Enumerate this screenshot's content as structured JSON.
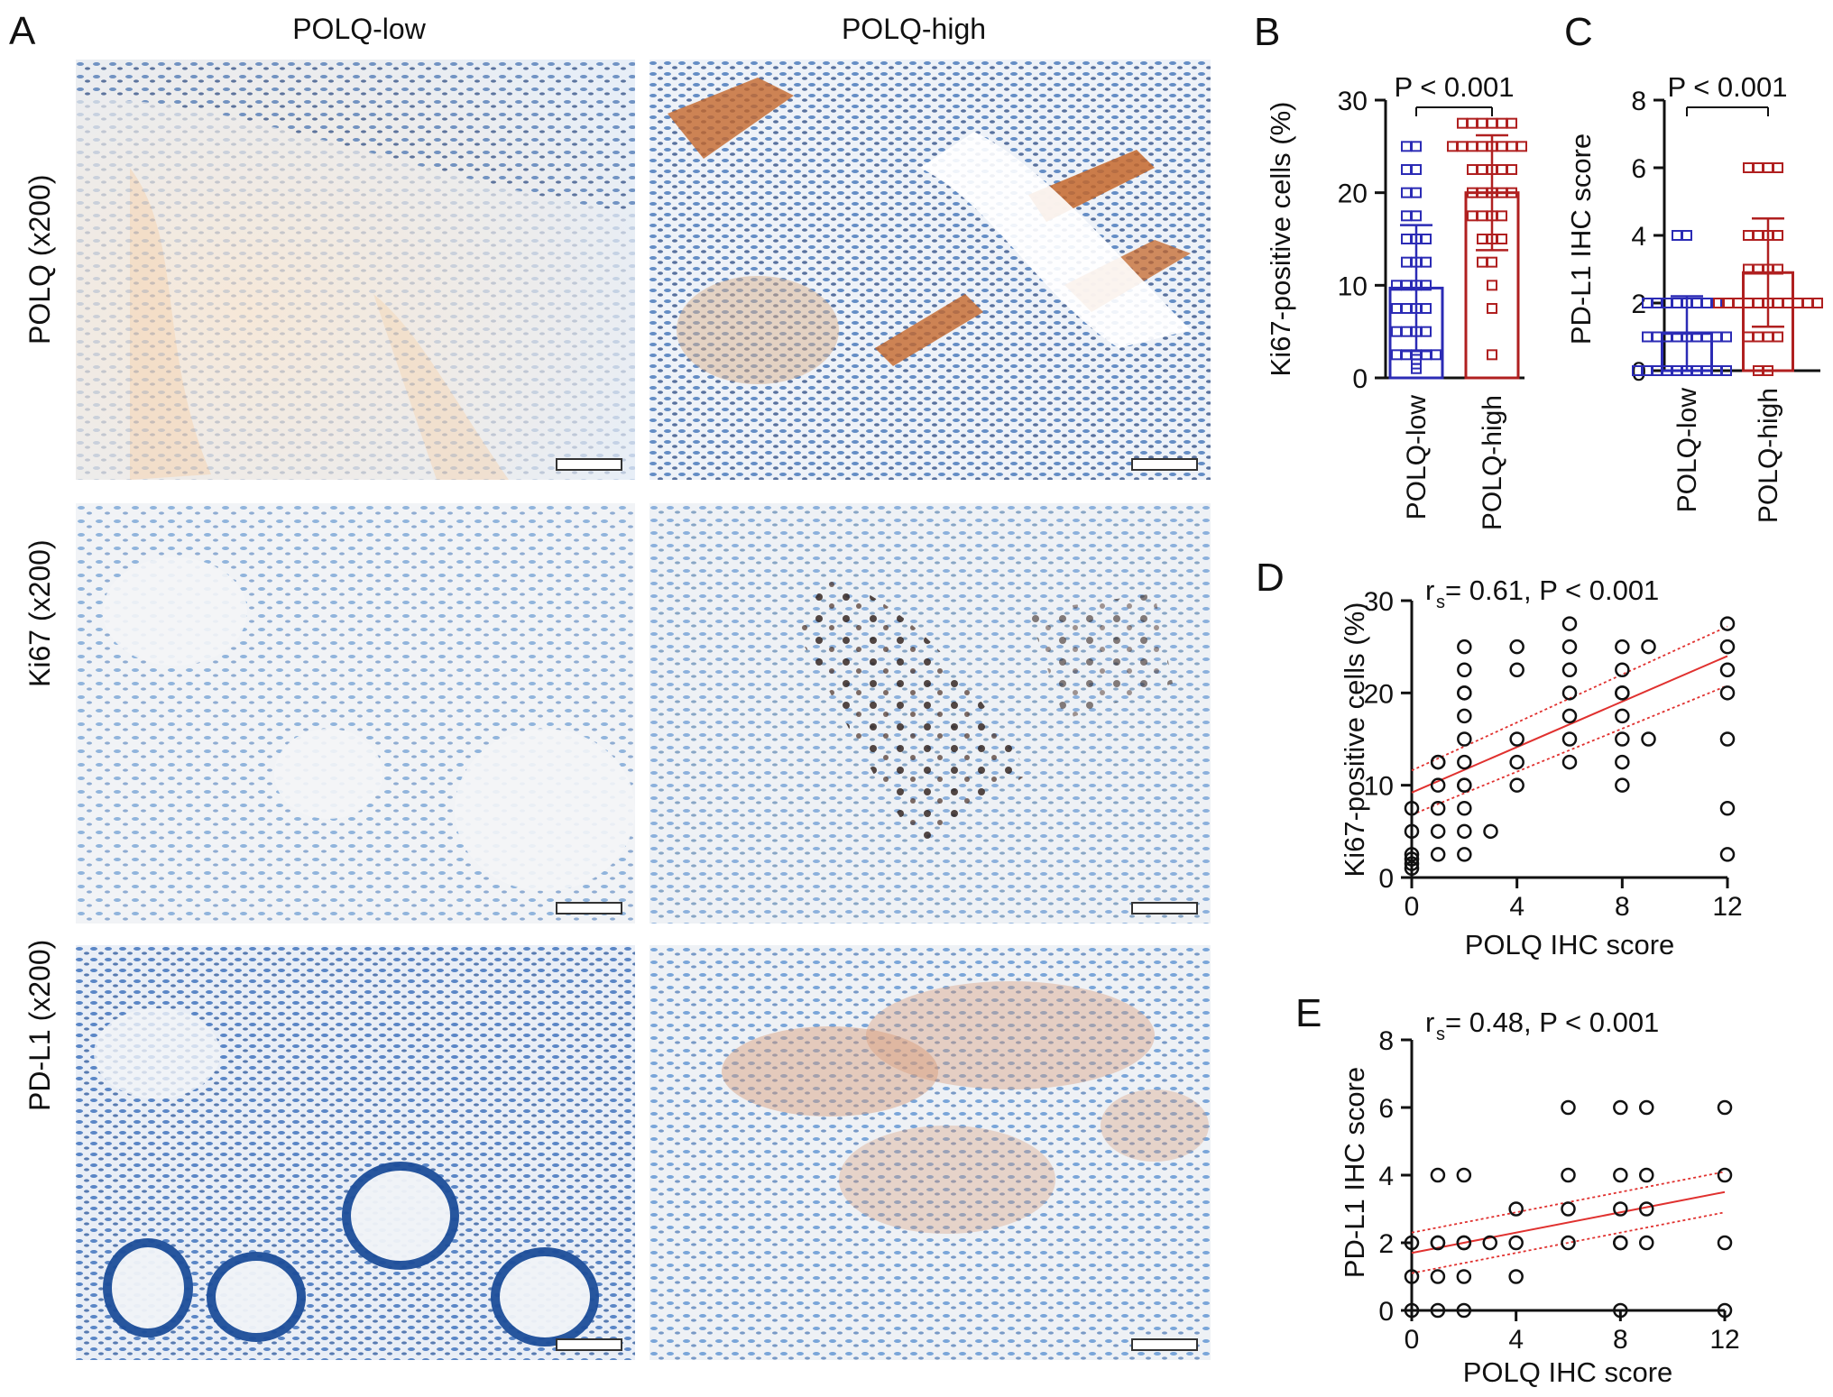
{
  "panel_a": {
    "letter": "A",
    "columns": [
      "POLQ-low",
      "POLQ-high"
    ],
    "rows": [
      "POLQ (x200)",
      "Ki67 (x200)",
      "PD-L1 (x200)"
    ]
  },
  "chart_data": [
    {
      "id": "B",
      "type": "bar",
      "letter": "B",
      "categories": [
        "POLQ-low",
        "POLQ-high"
      ],
      "values": [
        9.7,
        20.0
      ],
      "sd": [
        6.8,
        6.2
      ],
      "points": [
        [
          25,
          25,
          22.5,
          22.5,
          20,
          20,
          17.5,
          17.5,
          15,
          15,
          15,
          12.5,
          12.5,
          12.5,
          10,
          10,
          10,
          10,
          7.5,
          7.5,
          7.5,
          7.5,
          5,
          5,
          5,
          5,
          2.5,
          2.5,
          2.5,
          2.5,
          2.5,
          2,
          1.5,
          1
        ],
        [
          27.5,
          27.5,
          27.5,
          27.5,
          27.5,
          27.5,
          25,
          25,
          25,
          25,
          25,
          25,
          25,
          25,
          22.5,
          22.5,
          22.5,
          22.5,
          22.5,
          20,
          20,
          20,
          20,
          20,
          17.5,
          17.5,
          17.5,
          17.5,
          15,
          15,
          15,
          12.5,
          12.5,
          10,
          7.5,
          2.5
        ]
      ],
      "colors": [
        "#2b2bb5",
        "#b02020"
      ],
      "ylabel": "Ki67-positive cells (%)",
      "ylim": [
        0,
        30
      ],
      "yticks": [
        0,
        10,
        20,
        30
      ],
      "annotation": "P < 0.001"
    },
    {
      "id": "C",
      "type": "bar",
      "letter": "C",
      "categories": [
        "POLQ-low",
        "POLQ-high"
      ],
      "values": [
        1.1,
        2.9
      ],
      "sd": [
        1.1,
        1.6
      ],
      "points": [
        [
          4,
          4,
          2,
          2,
          2,
          2,
          2,
          2,
          2,
          2,
          1,
          1,
          1,
          1,
          1,
          1,
          1,
          1,
          1,
          0,
          0,
          0,
          0,
          0,
          0,
          0,
          0,
          0,
          0
        ],
        [
          6,
          6,
          6,
          6,
          4,
          4,
          4,
          4,
          3,
          3,
          3,
          3,
          2,
          2,
          2,
          2,
          2,
          2,
          2,
          2,
          2,
          2,
          2,
          1,
          1,
          1,
          1,
          0,
          0
        ]
      ],
      "colors": [
        "#2b2bb5",
        "#b02020"
      ],
      "ylabel": "PD-L1 IHC score",
      "ylim": [
        0,
        8
      ],
      "yticks": [
        0,
        2,
        4,
        6,
        8
      ],
      "annotation": "P < 0.001"
    },
    {
      "id": "D",
      "type": "scatter",
      "letter": "D",
      "title_r": "r",
      "title_sub": "s",
      "title_rest": " = 0.61, P < 0.001",
      "xlabel": "POLQ IHC score",
      "ylabel": "Ki67-positive cells (%)",
      "xlim": [
        0,
        12
      ],
      "ylim": [
        0,
        30
      ],
      "xticks": [
        0,
        4,
        8,
        12
      ],
      "yticks": [
        0,
        10,
        20,
        30
      ],
      "x": [
        0,
        0,
        0,
        0,
        0,
        0,
        1,
        1,
        1,
        1,
        1,
        1,
        2,
        2,
        2,
        2,
        2,
        2,
        2,
        2,
        2,
        2,
        2,
        2,
        3,
        4,
        4,
        4,
        4,
        4,
        6,
        6,
        6,
        6,
        6,
        6,
        6,
        8,
        8,
        8,
        8,
        8,
        8,
        8,
        8,
        9,
        9,
        12,
        12,
        12,
        12,
        12,
        12,
        12
      ],
      "y": [
        7.5,
        5,
        2.5,
        2,
        1.5,
        1,
        12.5,
        10,
        7.5,
        5,
        2.5,
        12.5,
        25,
        22.5,
        20,
        17.5,
        15,
        12.5,
        10,
        7.5,
        5,
        2.5,
        20,
        10,
        5,
        25,
        22.5,
        15,
        12.5,
        10,
        27.5,
        25,
        22.5,
        20,
        17.5,
        15,
        12.5,
        25,
        22.5,
        20,
        17.5,
        15,
        12.5,
        10,
        20,
        25,
        15,
        27.5,
        25,
        22.5,
        20,
        15,
        7.5,
        2.5
      ],
      "fit": {
        "x": [
          0,
          12
        ],
        "y": [
          9.2,
          24.0
        ]
      },
      "ci_upper": [
        11.6,
        27.2
      ],
      "ci_lower": [
        6.8,
        20.8
      ]
    },
    {
      "id": "E",
      "type": "scatter",
      "letter": "E",
      "title_r": "r",
      "title_sub": "s",
      "title_rest": " = 0.48, P < 0.001",
      "xlabel": "POLQ IHC score",
      "ylabel": "PD-L1 IHC score",
      "xlim": [
        0,
        12
      ],
      "ylim": [
        0,
        8
      ],
      "xticks": [
        0,
        4,
        8,
        12
      ],
      "yticks": [
        0,
        2,
        4,
        6,
        8
      ],
      "x": [
        0,
        0,
        0,
        1,
        1,
        1,
        1,
        1,
        2,
        2,
        2,
        2,
        2,
        3,
        4,
        4,
        4,
        6,
        6,
        6,
        6,
        8,
        8,
        8,
        8,
        8,
        8,
        9,
        9,
        9,
        9,
        12,
        12,
        12,
        12
      ],
      "y": [
        2,
        1,
        0,
        4,
        2,
        2,
        1,
        0,
        4,
        2,
        2,
        1,
        0,
        2,
        3,
        2,
        1,
        6,
        4,
        3,
        2,
        6,
        4,
        3,
        2,
        2,
        0,
        6,
        4,
        3,
        2,
        6,
        4,
        2,
        0
      ],
      "fit": {
        "x": [
          0,
          12
        ],
        "y": [
          1.7,
          3.5
        ]
      },
      "ci_upper": [
        2.3,
        4.1
      ],
      "ci_lower": [
        1.1,
        2.9
      ]
    }
  ]
}
